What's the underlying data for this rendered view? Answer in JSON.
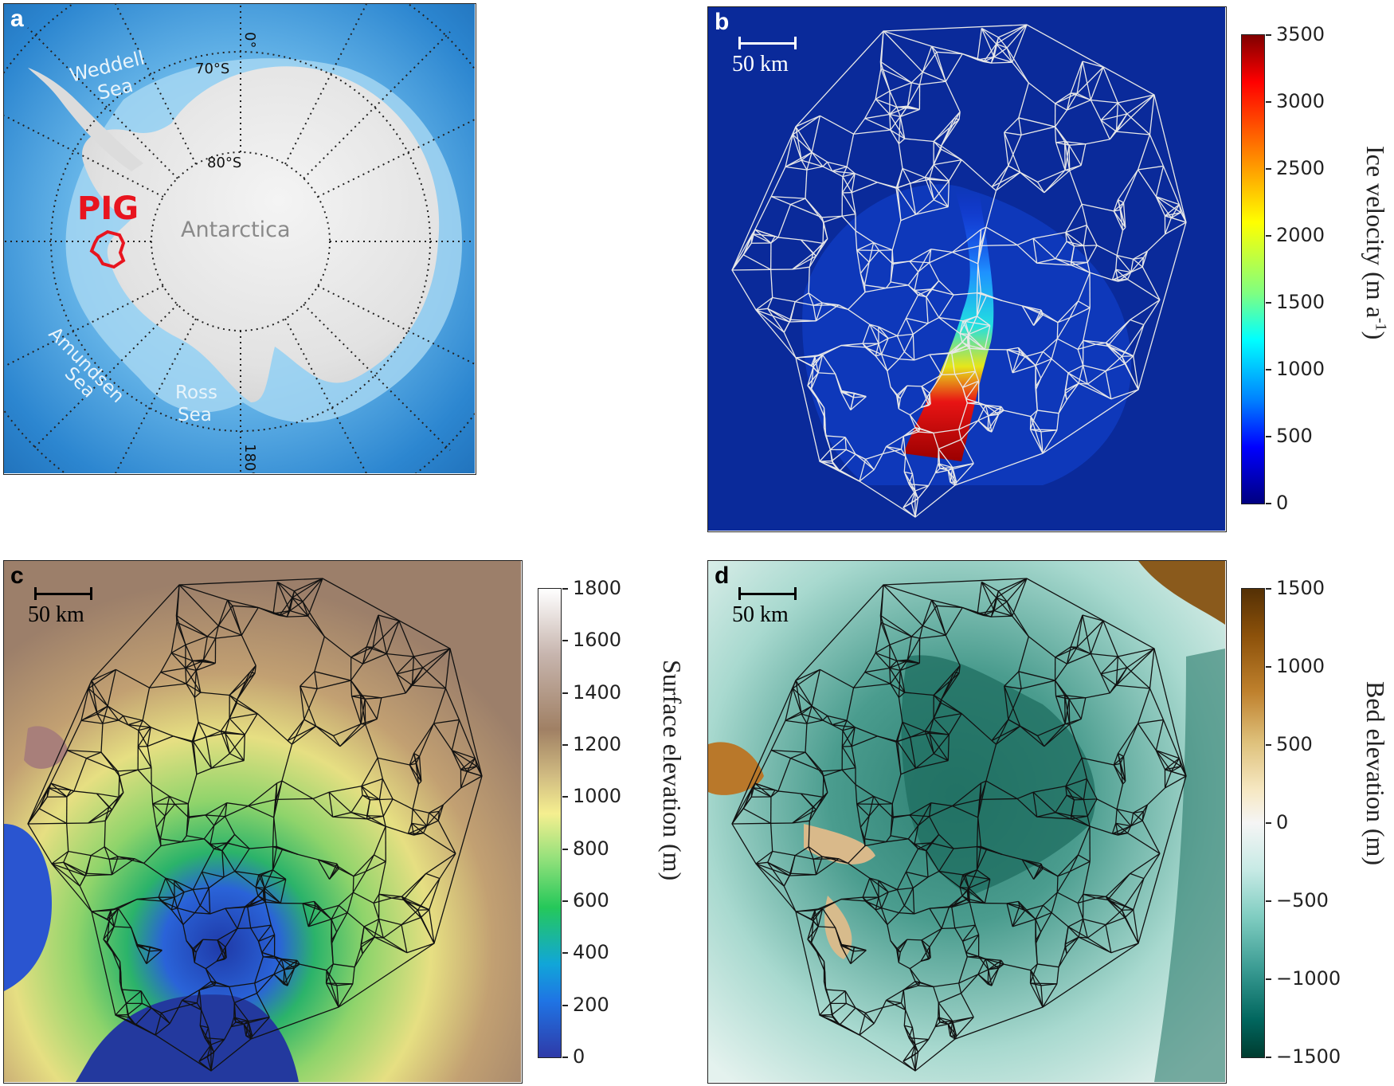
{
  "panels": {
    "a": {
      "label": "a",
      "labels": {
        "meridian_top": "0°",
        "meridian_bottom": "180°",
        "lat_70": "70°S",
        "lat_80": "80°S",
        "weddell_1": "Weddell",
        "weddell_2": "Sea",
        "amundsen_1": "Amundsen",
        "amundsen_2": "Sea",
        "ross_1": "Ross",
        "ross_2": "Sea",
        "continent": "Antarctica",
        "pig": "PIG"
      },
      "colors": {
        "ocean": "#2f8fd6",
        "ice": "#e6e6e6",
        "pig_outline": "#e8141e"
      }
    },
    "b": {
      "label": "b",
      "scalebar": "50 km",
      "colorbar": {
        "title": "Ice velocity (m a",
        "title_sup": "-1",
        "title_end": ")",
        "ticks": [
          "3500",
          "3000",
          "2500",
          "2000",
          "1500",
          "1000",
          "500",
          "0"
        ],
        "range": [
          0,
          3500
        ],
        "colormap": "jet"
      }
    },
    "c": {
      "label": "c",
      "scalebar": "50 km",
      "colorbar": {
        "title": "Surface elevation (m)",
        "ticks": [
          "1800",
          "1600",
          "1400",
          "1200",
          "1000",
          "800",
          "600",
          "400",
          "200",
          "0"
        ],
        "range": [
          0,
          1800
        ],
        "colormap": "terrain"
      }
    },
    "d": {
      "label": "d",
      "scalebar": "50 km",
      "colorbar": {
        "title": "Bed elevation (m)",
        "ticks": [
          "1500",
          "1000",
          "500",
          "0",
          "−500",
          "−1000",
          "−1500"
        ],
        "range": [
          -1500,
          1500
        ],
        "colormap": "BrBG"
      }
    }
  }
}
